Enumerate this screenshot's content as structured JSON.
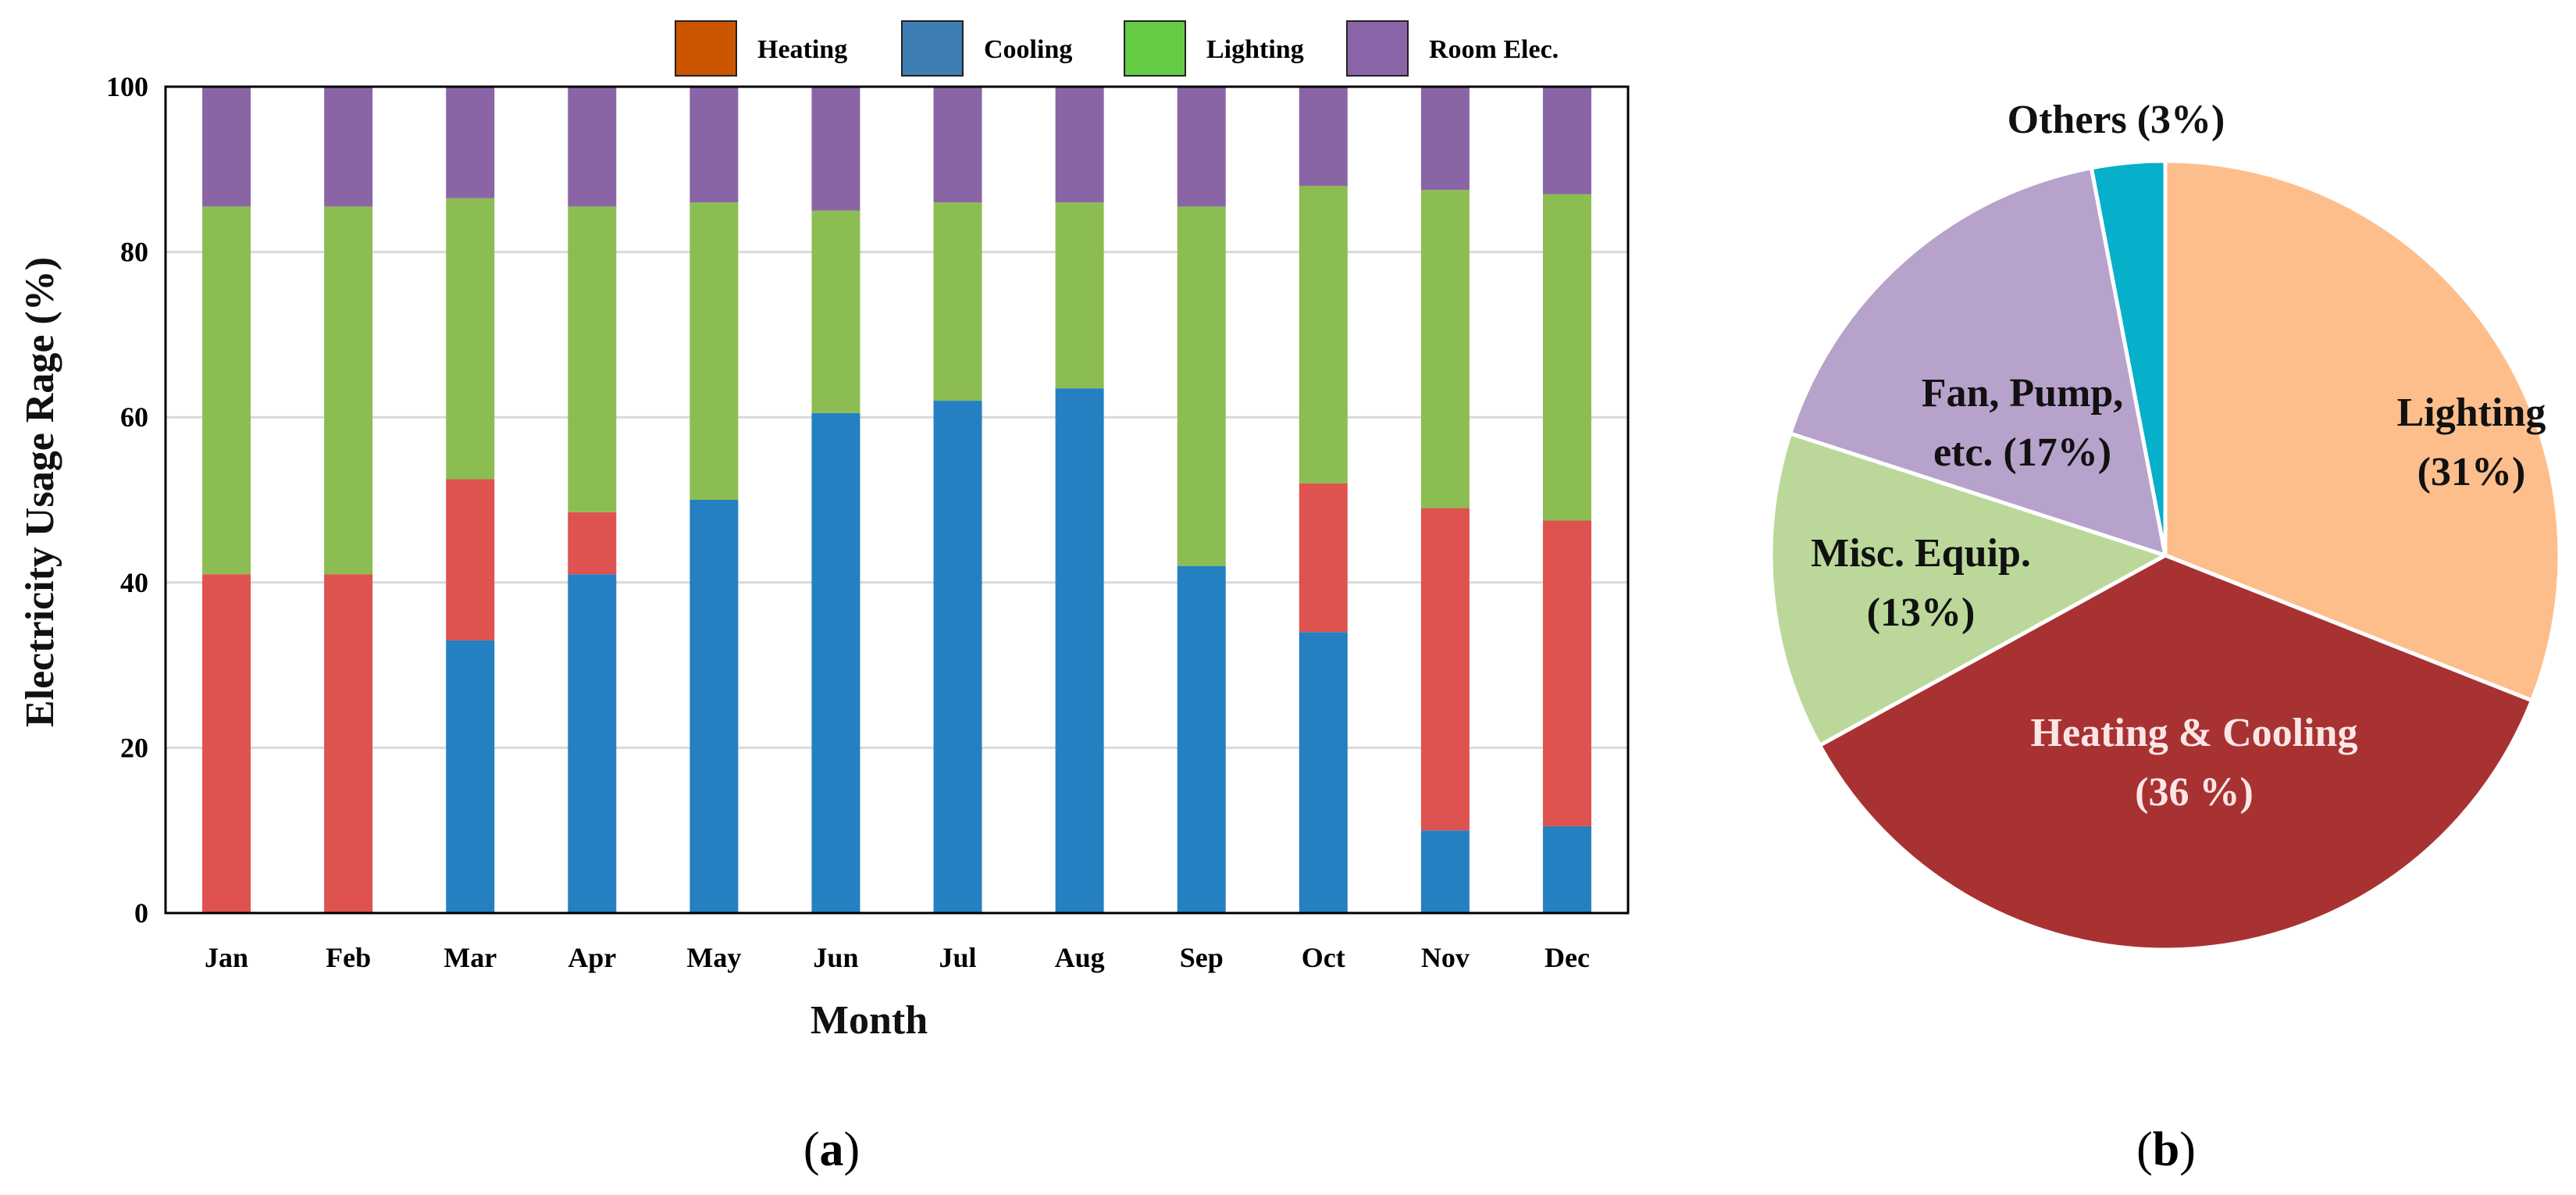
{
  "chart_data": [
    {
      "type": "bar",
      "stacked": true,
      "xlabel": "Month",
      "ylabel": "Electricity Usage Rage (%)",
      "ylim": [
        0,
        100
      ],
      "yticks": [
        0,
        20,
        40,
        60,
        80,
        100
      ],
      "grid": true,
      "legend_position": "top",
      "categories": [
        "Jan",
        "Feb",
        "Mar",
        "Apr",
        "May",
        "Jun",
        "Jul",
        "Aug",
        "Sep",
        "Oct",
        "Nov",
        "Dec"
      ],
      "legend": [
        {
          "name": "Heating",
          "color": "#CC5500"
        },
        {
          "name": "Cooling",
          "color": "#3D7EB4"
        },
        {
          "name": "Lighting",
          "color": "#66CC44"
        },
        {
          "name": "Room Elec.",
          "color": "#8A65A8"
        }
      ],
      "series": [
        {
          "name": "Cooling",
          "color": "#2580C2",
          "values": [
            0,
            0,
            33,
            41,
            50,
            60.5,
            62,
            63.5,
            42,
            34,
            10,
            10.5
          ]
        },
        {
          "name": "Heating",
          "color": "#DE5250",
          "values": [
            41,
            41,
            19.5,
            7.5,
            0,
            0,
            0,
            0,
            0,
            18,
            39,
            37
          ]
        },
        {
          "name": "Lighting",
          "color": "#8CBD52",
          "values": [
            44.5,
            44.5,
            34,
            37,
            36,
            24.5,
            24,
            22.5,
            43.5,
            36,
            38.5,
            39.5
          ]
        },
        {
          "name": "Room Elec.",
          "color": "#8A65A6",
          "values": [
            14.5,
            14.5,
            13.5,
            14.5,
            14,
            15,
            14,
            14,
            14.5,
            12,
            12.5,
            13
          ]
        }
      ],
      "panel_label": {
        "open": "(",
        "letter": "a",
        "close": ")"
      }
    },
    {
      "type": "pie",
      "slices": [
        {
          "name": "Lighting",
          "value": 31,
          "label_lines": [
            "Lighting",
            "(31%)"
          ],
          "color": "#FEBE8C",
          "text_color": "#111111"
        },
        {
          "name": "Heating & Cooling",
          "value": 36,
          "label_lines": [
            "Heating & Cooling",
            "(36 %)"
          ],
          "color": "#A83232",
          "text_color": "#FBE6E6"
        },
        {
          "name": "Misc. Equip.",
          "value": 13,
          "label_lines": [
            "Misc. Equip.",
            "(13%)"
          ],
          "color": "#BBD89A",
          "text_color": "#111111"
        },
        {
          "name": "Fan, Pump, etc.",
          "value": 17,
          "label_lines": [
            "Fan, Pump,",
            "etc. (17%)"
          ],
          "color": "#B7A2CC",
          "text_color": "#111111"
        },
        {
          "name": "Others",
          "value": 3,
          "label_lines": [
            "Others (3%)"
          ],
          "color": "#06AFCA",
          "text_color": "#111111"
        }
      ],
      "panel_label": {
        "open": "(",
        "letter": "b",
        "close": ")"
      }
    }
  ]
}
